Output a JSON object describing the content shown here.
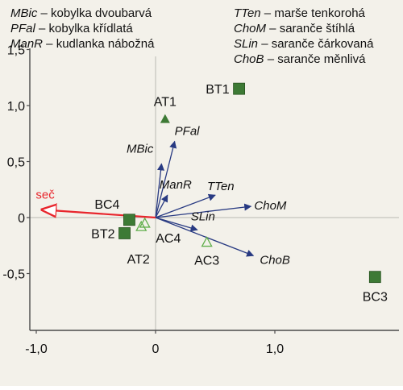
{
  "chart_data": {
    "type": "scatter",
    "title": "",
    "xlabel": "",
    "ylabel": "",
    "xlim": [
      -1.0,
      1.9
    ],
    "ylim": [
      -1.0,
      1.6
    ],
    "x_ticks": [
      -1.0,
      0,
      1.0
    ],
    "x_tick_labels": [
      "-1,0",
      "0",
      "1,0"
    ],
    "y_ticks": [
      1.5,
      1.0,
      0.5,
      0,
      -0.5
    ],
    "y_tick_labels": [
      "1,5",
      "1,0",
      "0,5",
      "0",
      "-0,5"
    ],
    "legend": {
      "placement": "top",
      "entries": [
        {
          "abbr": "MBic",
          "name": "– kobylka dvoubarvá"
        },
        {
          "abbr": "PFal",
          "name": "– kobylka křídlatá"
        },
        {
          "abbr": "ManR",
          "name": "– kudlanka nábožná"
        },
        {
          "abbr": "TTen",
          "name": "– marše tenkorohá"
        },
        {
          "abbr": "ChoM",
          "name": "– saranče štíhlá"
        },
        {
          "abbr": "SLin",
          "name": "– saranče čárkovaná"
        },
        {
          "abbr": "ChoB",
          "name": "– saranče měnlivá"
        }
      ]
    },
    "species_vectors": [
      {
        "label": "PFal",
        "x": 0.16,
        "y": 0.68
      },
      {
        "label": "MBic",
        "x": 0.05,
        "y": 0.48
      },
      {
        "label": "ManR",
        "x": 0.1,
        "y": 0.2
      },
      {
        "label": "TTen",
        "x": 0.5,
        "y": 0.2
      },
      {
        "label": "ChoM",
        "x": 0.8,
        "y": 0.1
      },
      {
        "label": "SLin",
        "x": 0.35,
        "y": -0.11
      },
      {
        "label": "ChoB",
        "x": 0.82,
        "y": -0.34
      }
    ],
    "env_vector": {
      "label": "seč",
      "x": -0.95,
      "y": 0.07,
      "color": "#e8262d"
    },
    "sites": [
      {
        "label": "BT1",
        "x": 0.7,
        "y": 1.15,
        "marker": "square"
      },
      {
        "label": "BC4",
        "x": -0.22,
        "y": -0.02,
        "marker": "square"
      },
      {
        "label": "BT2",
        "x": -0.26,
        "y": -0.14,
        "marker": "square"
      },
      {
        "label": "BC3",
        "x": 1.84,
        "y": -0.53,
        "marker": "square"
      },
      {
        "label": "AT1",
        "x": 0.08,
        "y": 0.88,
        "marker": "triangle-filled"
      },
      {
        "label": "AT2",
        "x": -0.09,
        "y": -0.05,
        "marker": "triangle-open"
      },
      {
        "label": "AC4",
        "x": -0.12,
        "y": -0.08,
        "marker": "triangle-open"
      },
      {
        "label": "AC3",
        "x": 0.43,
        "y": -0.22,
        "marker": "triangle-open"
      }
    ],
    "colors": {
      "vector": "#283a82",
      "env": "#e8262d",
      "square": "#3d7a35",
      "triangle": "#3d7a35",
      "axis": "#4a4a4a",
      "background": "#f3f1ea"
    }
  }
}
